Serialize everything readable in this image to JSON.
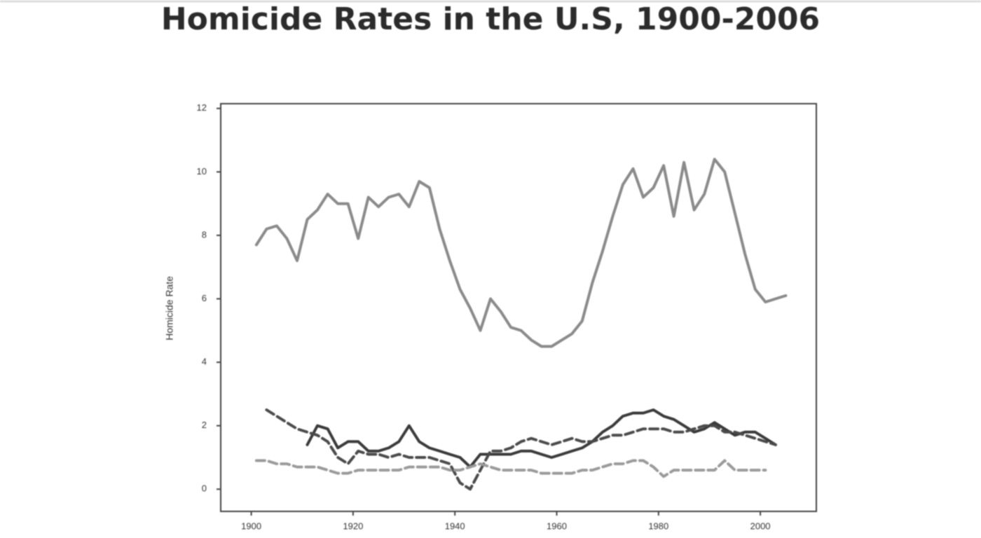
{
  "chart_data": {
    "type": "line",
    "title": "Homicide Rates in the U.S, 1900-2006",
    "y_label": "Homicide Rate",
    "x": [
      1901,
      1903,
      1905,
      1907,
      1909,
      1911,
      1913,
      1915,
      1917,
      1919,
      1921,
      1923,
      1925,
      1927,
      1929,
      1931,
      1933,
      1935,
      1937,
      1939,
      1941,
      1943,
      1945,
      1947,
      1949,
      1951,
      1953,
      1955,
      1957,
      1959,
      1961,
      1963,
      1965,
      1967,
      1969,
      1971,
      1973,
      1975,
      1977,
      1979,
      1981,
      1983,
      1985,
      1987,
      1989,
      1991,
      1993,
      1995,
      1997,
      1999,
      2001,
      2003,
      2005
    ],
    "series": [
      {
        "color": "#8a8a8a",
        "dash": false,
        "values": [
          7.7,
          8.2,
          8.3,
          7.9,
          7.2,
          8.5,
          8.8,
          9.3,
          9.0,
          9.0,
          7.9,
          9.2,
          8.9,
          9.2,
          9.3,
          8.9,
          9.7,
          9.5,
          8.2,
          7.2,
          6.3,
          5.7,
          5.0,
          6.0,
          5.6,
          5.1,
          5.0,
          4.7,
          4.5,
          4.5,
          4.7,
          4.9,
          5.3,
          6.5,
          7.5,
          8.6,
          9.6,
          10.1,
          9.2,
          9.5,
          10.2,
          8.6,
          10.3,
          8.8,
          9.3,
          10.4,
          10.0,
          8.7,
          7.4,
          6.3,
          5.9,
          6.0,
          6.1
        ]
      },
      {
        "color": "#3a3a3a",
        "dash": false,
        "values": [
          null,
          null,
          null,
          null,
          null,
          1.4,
          2.0,
          1.9,
          1.3,
          1.5,
          1.5,
          1.2,
          1.2,
          1.3,
          1.5,
          2.0,
          1.5,
          1.3,
          1.2,
          1.1,
          1.0,
          0.7,
          1.1,
          1.1,
          1.1,
          1.1,
          1.2,
          1.2,
          1.1,
          1.0,
          1.1,
          1.2,
          1.3,
          1.5,
          1.8,
          2.0,
          2.3,
          2.4,
          2.4,
          2.5,
          2.3,
          2.2,
          2.0,
          1.8,
          1.9,
          2.1,
          1.9,
          1.7,
          1.8,
          1.8,
          1.6,
          1.4,
          null
        ]
      },
      {
        "color": "#4a4a4a",
        "dash": true,
        "values": [
          null,
          2.5,
          2.3,
          2.1,
          1.9,
          1.8,
          1.7,
          1.5,
          1.0,
          0.8,
          1.2,
          1.1,
          1.1,
          1.0,
          1.1,
          1.0,
          1.0,
          1.0,
          0.9,
          0.8,
          0.2,
          0.0,
          0.6,
          1.2,
          1.2,
          1.3,
          1.5,
          1.6,
          1.5,
          1.4,
          1.5,
          1.6,
          1.5,
          1.5,
          1.6,
          1.7,
          1.7,
          1.8,
          1.9,
          1.9,
          1.9,
          1.8,
          1.8,
          1.9,
          2.0,
          2.0,
          1.8,
          1.8,
          1.7,
          1.6,
          1.5,
          1.4,
          null
        ]
      },
      {
        "color": "#9a9a9a",
        "dash": true,
        "values": [
          0.9,
          0.9,
          0.8,
          0.8,
          0.7,
          0.7,
          0.7,
          0.6,
          0.5,
          0.5,
          0.6,
          0.6,
          0.6,
          0.6,
          0.6,
          0.7,
          0.7,
          0.7,
          0.7,
          0.6,
          0.6,
          0.7,
          0.8,
          0.7,
          0.6,
          0.6,
          0.6,
          0.6,
          0.5,
          0.5,
          0.5,
          0.5,
          0.6,
          0.6,
          0.7,
          0.8,
          0.8,
          0.9,
          0.9,
          0.7,
          0.4,
          0.6,
          0.6,
          0.6,
          0.6,
          0.6,
          0.9,
          0.6,
          0.6,
          0.6,
          0.6,
          null,
          null
        ]
      }
    ],
    "xlim": [
      1894,
      2011
    ],
    "ylim": [
      -0.7,
      12.15
    ],
    "xticks": [
      1900,
      1920,
      1940,
      1960,
      1980,
      2000
    ],
    "yticks": [
      0,
      2,
      4,
      6,
      8,
      10,
      12
    ]
  }
}
